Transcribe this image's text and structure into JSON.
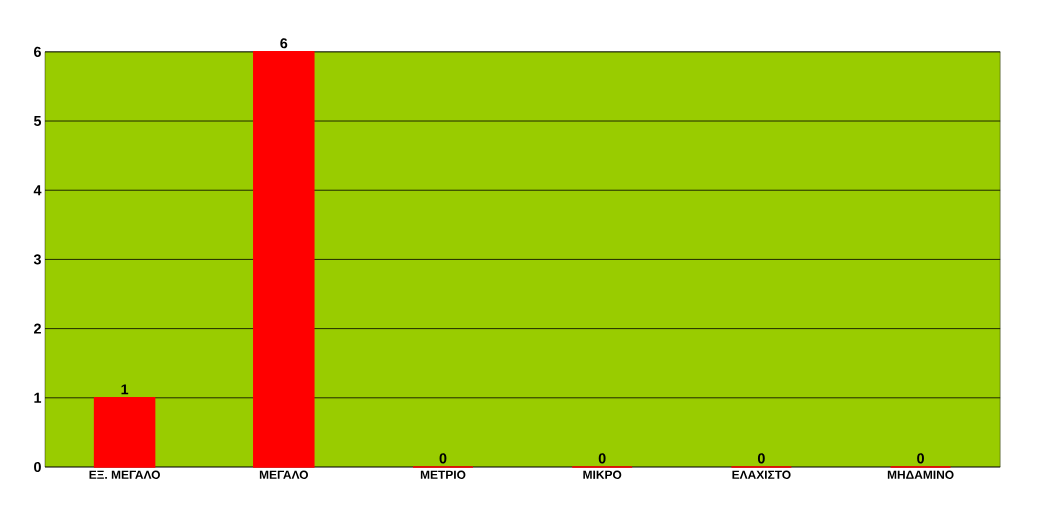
{
  "chart_data": {
    "type": "bar",
    "categories": [
      "ΕΞ. ΜΕΓΑΛΟ",
      "ΜΕΓΑΛΟ",
      "ΜΕΤΡΙΟ",
      "ΜΙΚΡΟ",
      "ΕΛΑΧΙΣΤΟ",
      "ΜΗΔΑΜΙΝΟ"
    ],
    "values": [
      1,
      6,
      0,
      0,
      0,
      0
    ],
    "color": "#ff0000",
    "ylim": [
      0,
      6
    ],
    "yticks": [
      0,
      1,
      2,
      3,
      4,
      5,
      6
    ],
    "grid": "y",
    "data_labels": true
  }
}
